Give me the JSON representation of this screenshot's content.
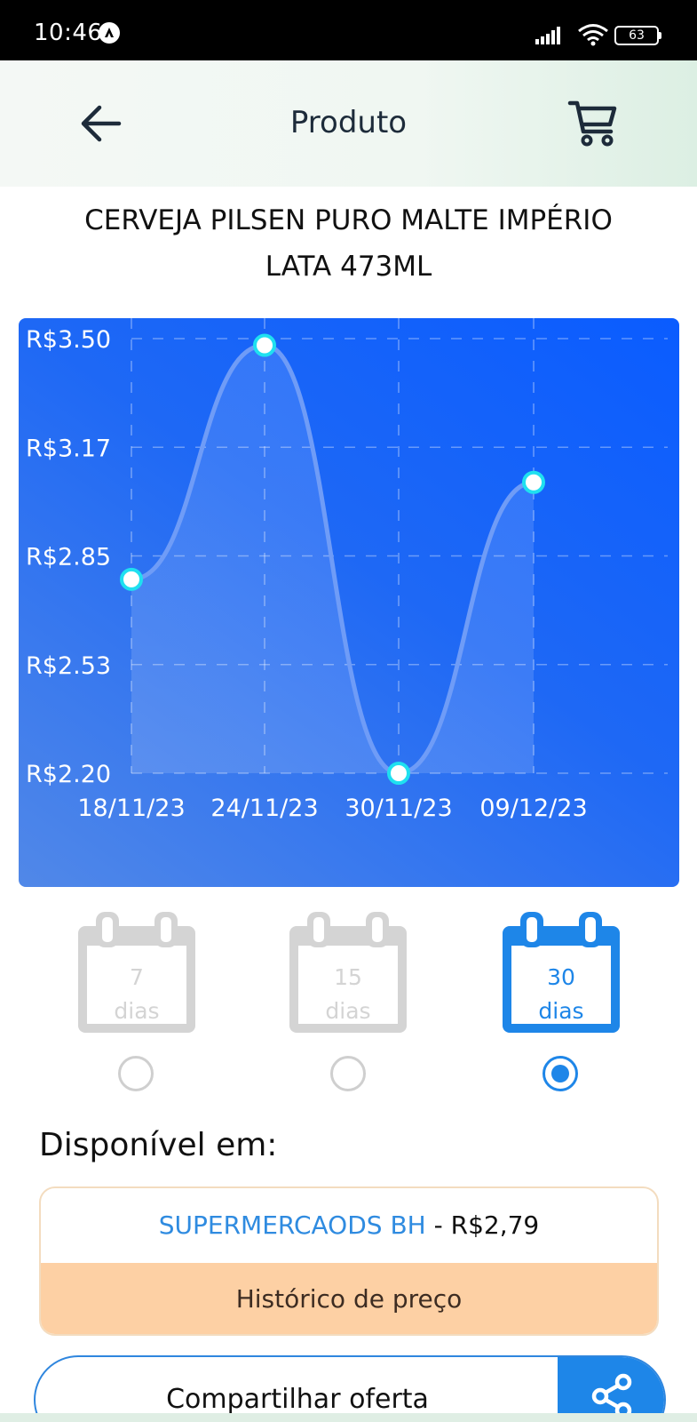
{
  "status_bar": {
    "time": "10:46",
    "battery": "63"
  },
  "header": {
    "title": "Produto",
    "back_icon": "arrow-left-icon",
    "cart_icon": "shopping-cart-icon"
  },
  "product": {
    "title_line1": "CERVEJA PILSEN PURO MALTE IMPÉRIO",
    "title_line2": "LATA 473ML"
  },
  "chart_data": {
    "type": "line",
    "x": [
      "18/11/23",
      "24/11/23",
      "30/11/23",
      "09/12/23"
    ],
    "values": [
      2.78,
      3.48,
      2.2,
      3.07
    ],
    "y_ticks": [
      "R$3.50",
      "R$3.17",
      "R$2.85",
      "R$2.53",
      "R$2.20"
    ],
    "ylim": [
      2.2,
      3.5
    ],
    "grid": true,
    "smooth": true,
    "colors": {
      "line": "#6f9cf7",
      "point_fill": "#ffffff",
      "point_stroke": "#1fe0f0"
    }
  },
  "periods": [
    {
      "number": "7",
      "unit": "dias",
      "selected": false
    },
    {
      "number": "15",
      "unit": "dias",
      "selected": false
    },
    {
      "number": "30",
      "unit": "dias",
      "selected": true
    }
  ],
  "available": {
    "title": "Disponível em:",
    "store_name": "SUPERMERCAODS BH",
    "separator": " - ",
    "price": "R$2,79",
    "history_label": "Histórico de preço"
  },
  "share": {
    "label": "Compartilhar oferta",
    "icon": "share-icon"
  },
  "colors": {
    "accent": "#1e86e8",
    "history_bg": "#fdd0a4",
    "disabled": "#d4d4d4"
  }
}
